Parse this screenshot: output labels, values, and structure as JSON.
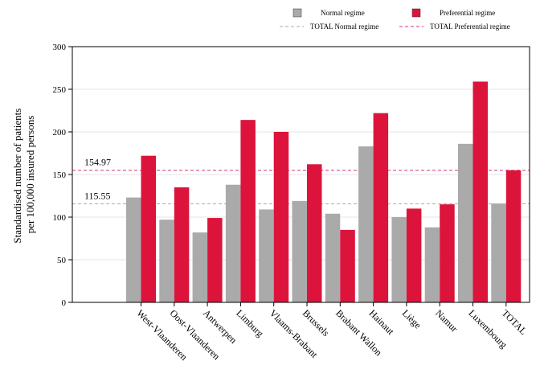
{
  "chart_data": {
    "type": "bar",
    "title": "",
    "xlabel": "",
    "ylabel_lines": [
      "Standardised number of patients",
      "per 100,000 insured persons"
    ],
    "ylim": [
      0,
      300
    ],
    "yticks": [
      0,
      50,
      100,
      150,
      200,
      250,
      300
    ],
    "grid": true,
    "legend_position": "top",
    "categories": [
      "West-Vlaanderen",
      "Oost-Vlaanderen",
      "Antwerpen",
      "Limburg",
      "Vlaams-Brabant",
      "Brussels",
      "Brabant Wallon",
      "Hainaut",
      "Liège",
      "Namur",
      "Luxembourg",
      "TOTAL"
    ],
    "series": [
      {
        "name": "Normal regime",
        "color": "#aaaaaa",
        "values": [
          123,
          97,
          82,
          138,
          109,
          119,
          104,
          183,
          100,
          88,
          186,
          116
        ]
      },
      {
        "name": "Preferential regime",
        "color": "#dc143c",
        "values": [
          172,
          135,
          99,
          214,
          200,
          162,
          85,
          222,
          110,
          115,
          259,
          155
        ]
      }
    ],
    "reference_lines": [
      {
        "name": "TOTAL Normal regime",
        "value": 115.55,
        "label": "115.55",
        "color": "#aaaaaa"
      },
      {
        "name": "TOTAL Preferential regime",
        "value": 154.97,
        "label": "154.97",
        "color": "#d63384"
      }
    ]
  }
}
